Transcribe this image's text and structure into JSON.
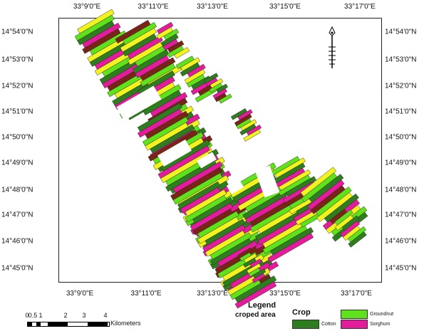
{
  "map": {
    "lon_labels": [
      "33°9'0\"E",
      "33°11'0\"E",
      "33°13'0\"E",
      "33°15'0\"E",
      "33°17'0\"E"
    ],
    "lon_labels_bottom": [
      "33°9'0\"E",
      "33°11'0\"E",
      "33°13'0\"E",
      "33°15'0\"E",
      "33°17'0\"E"
    ],
    "lat_labels": [
      "14°54'0\"N",
      "14°53'0\"N",
      "14°52'0\"N",
      "14°51'0\"N",
      "14°50'0\"N",
      "14°49'0\"N",
      "14°48'0\"N",
      "14°47'0\"N",
      "14°46'0\"N",
      "14°45'0\"N"
    ],
    "north_arrow_icon": "north-arrow-icon",
    "colors": {
      "cotton": "#2e7d1f",
      "groundnut": "#5fe11c",
      "sorghum": "#e31c9c",
      "fallow": "#f2f21f",
      "bare": "#7a2418"
    }
  },
  "scale_bar": {
    "numbers": [
      "0",
      "0.5",
      "1",
      "2",
      "3",
      "4"
    ],
    "unit": "Kilometers"
  },
  "legend": {
    "title": "Legend",
    "heading": "croped area",
    "crop_label": "Crop",
    "items": [
      {
        "label": "Groundnut",
        "color": "#5fe11c"
      },
      {
        "label": "Cotton",
        "color": "#2e7d1f"
      },
      {
        "label": "Sorghum",
        "color": "#e31c9c"
      }
    ]
  }
}
